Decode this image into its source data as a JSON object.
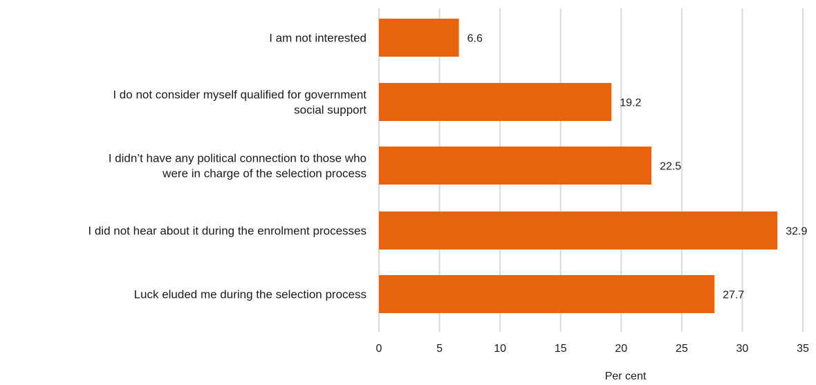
{
  "chart_data": {
    "type": "bar",
    "orientation": "horizontal",
    "categories": [
      [
        "I am not interested"
      ],
      [
        "I do not consider myself qualified for government",
        "social support"
      ],
      [
        "I didn’t have any political connection to those who",
        "were in charge of the selection process"
      ],
      [
        "I did not hear about it during the enrolment processes"
      ],
      [
        "Luck eluded me during the selection process"
      ]
    ],
    "values": [
      6.6,
      19.2,
      22.5,
      32.9,
      27.7
    ],
    "data_labels": [
      "6.6",
      "19.2",
      "22.5",
      "32.9",
      "27.7"
    ],
    "xlabel": "Per cent",
    "xlim": [
      0,
      35
    ],
    "xticks": [
      0,
      5,
      10,
      15,
      20,
      25,
      30,
      35
    ],
    "grid": "vertical",
    "bar_color": "#e8630e"
  }
}
